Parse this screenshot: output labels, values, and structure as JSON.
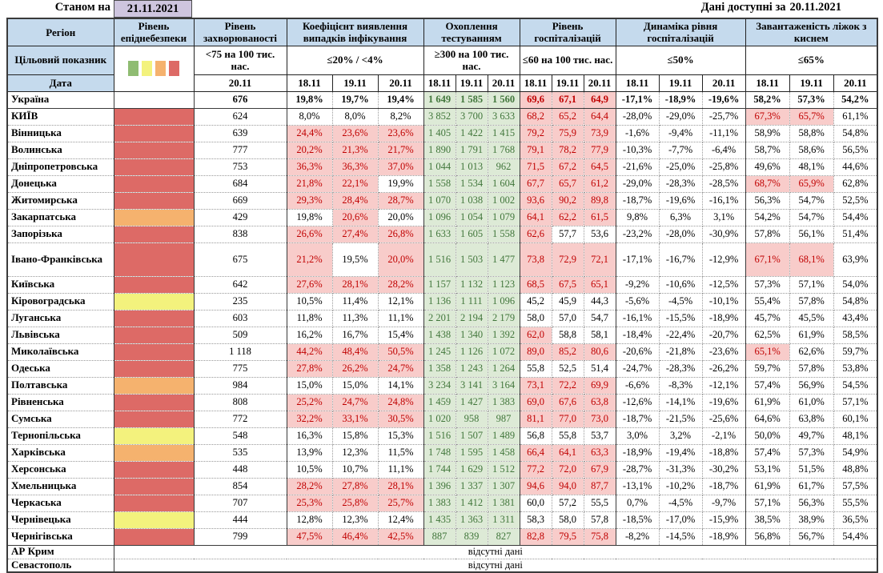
{
  "header": {
    "as_of_label": "Станом на",
    "as_of_date": "21.11.2021",
    "available_label": "Дані доступні за",
    "available_date": "20.11.2021"
  },
  "columns": {
    "region_label": "Регіон",
    "target_label": "Цільовий показник",
    "date_label": "Дата",
    "groups": [
      {
        "title": "Рівень епіднебезпеки"
      },
      {
        "title": "Рівень захворюваності",
        "criterion": "<75 на 100 тис. нас.",
        "dates": [
          "20.11"
        ]
      },
      {
        "title": "Коефіцієнт виявлення випадків інфікування",
        "criterion": "≤20% / <4%",
        "dates": [
          "18.11",
          "19.11",
          "20.11"
        ]
      },
      {
        "title": "Охоплення тестуванням",
        "criterion": "≥300 на 100 тис. нас.",
        "dates": [
          "18.11",
          "19.11",
          "20.11"
        ]
      },
      {
        "title": "Рівень госпіталізацій",
        "criterion": "≤60 на 100 тис. нас.",
        "dates": [
          "18.11",
          "19.11",
          "20.11"
        ]
      },
      {
        "title": "Динаміка рівня госпіталізацій",
        "criterion": "≤50%",
        "dates": [
          "18.11",
          "19.11",
          "20.11"
        ]
      },
      {
        "title": "Завантаженість ліжок з киснем",
        "criterion": "≤65%",
        "dates": [
          "18.11",
          "19.11",
          "20.11"
        ]
      }
    ]
  },
  "colors": {
    "header_bg": "#C5DAED",
    "date_box_bg": "#CEC5DE",
    "danger_red": "#DD6A66",
    "danger_orange": "#F5B26E",
    "danger_yellow": "#F3F27D",
    "danger_green": "#8FBC72",
    "alert_bg": "#F8CCCA",
    "alert_text": "#C00000",
    "ok_bg": "#DDEAD6",
    "ok_text": "#41763B"
  },
  "thresholds": {
    "hosp_max": 60,
    "beds_max": 65
  },
  "no_data_text": "відсутні дані",
  "no_data_rows": [
    "АР Крим",
    "Севастополь"
  ],
  "rows": [
    {
      "name": "Україна",
      "bold": true,
      "danger": null,
      "morbidity": "676",
      "coeff": [
        "19,8%",
        "19,7%",
        "19,4%"
      ],
      "coeff_hl": [
        false,
        false,
        false
      ],
      "testing": [
        "1 649",
        "1 585",
        "1 560"
      ],
      "hosp": [
        "69,6",
        "67,1",
        "64,9"
      ],
      "dyn": [
        "-17,1%",
        "-18,9%",
        "-19,6%"
      ],
      "beds": [
        "58,2%",
        "57,3%",
        "54,2%"
      ],
      "beds_hl": [
        false,
        false,
        false
      ]
    },
    {
      "name": "КИЇВ",
      "danger": "red",
      "morbidity": "624",
      "coeff": [
        "8,0%",
        "8,0%",
        "8,2%"
      ],
      "coeff_hl": [
        false,
        false,
        false
      ],
      "testing": [
        "3 852",
        "3 700",
        "3 633"
      ],
      "hosp": [
        "68,2",
        "65,2",
        "64,4"
      ],
      "dyn": [
        "-28,0%",
        "-29,0%",
        "-25,7%"
      ],
      "beds": [
        "67,3%",
        "65,7%",
        "61,1%"
      ],
      "beds_hl": [
        true,
        true,
        false
      ]
    },
    {
      "name": "Вінницька",
      "danger": "red",
      "morbidity": "639",
      "coeff": [
        "24,4%",
        "23,6%",
        "23,6%"
      ],
      "coeff_hl": [
        true,
        true,
        true
      ],
      "testing": [
        "1 405",
        "1 422",
        "1 415"
      ],
      "hosp": [
        "79,2",
        "75,9",
        "73,9"
      ],
      "dyn": [
        "-1,6%",
        "-9,4%",
        "-11,1%"
      ],
      "beds": [
        "58,9%",
        "58,8%",
        "54,8%"
      ],
      "beds_hl": [
        false,
        false,
        false
      ]
    },
    {
      "name": "Волинська",
      "danger": "red",
      "morbidity": "777",
      "coeff": [
        "20,2%",
        "21,3%",
        "21,7%"
      ],
      "coeff_hl": [
        true,
        true,
        true
      ],
      "testing": [
        "1 890",
        "1 791",
        "1 768"
      ],
      "hosp": [
        "79,1",
        "78,2",
        "77,9"
      ],
      "dyn": [
        "-10,3%",
        "-7,7%",
        "-6,4%"
      ],
      "beds": [
        "58,7%",
        "58,6%",
        "56,5%"
      ],
      "beds_hl": [
        false,
        false,
        false
      ]
    },
    {
      "name": "Дніпропетровська",
      "danger": "red",
      "morbidity": "753",
      "coeff": [
        "36,3%",
        "36,3%",
        "37,0%"
      ],
      "coeff_hl": [
        true,
        true,
        true
      ],
      "testing": [
        "1 044",
        "1 013",
        "962"
      ],
      "hosp": [
        "71,5",
        "67,2",
        "64,5"
      ],
      "dyn": [
        "-21,6%",
        "-25,0%",
        "-25,8%"
      ],
      "beds": [
        "49,6%",
        "48,1%",
        "44,6%"
      ],
      "beds_hl": [
        false,
        false,
        false
      ]
    },
    {
      "name": "Донецька",
      "danger": "red",
      "morbidity": "684",
      "coeff": [
        "21,8%",
        "22,1%",
        "19,9%"
      ],
      "coeff_hl": [
        true,
        true,
        false
      ],
      "testing": [
        "1 558",
        "1 534",
        "1 604"
      ],
      "hosp": [
        "67,7",
        "65,7",
        "61,2"
      ],
      "dyn": [
        "-29,0%",
        "-28,3%",
        "-28,5%"
      ],
      "beds": [
        "68,7%",
        "65,9%",
        "62,8%"
      ],
      "beds_hl": [
        true,
        true,
        false
      ]
    },
    {
      "name": "Житомирська",
      "danger": "red",
      "morbidity": "669",
      "coeff": [
        "29,3%",
        "28,4%",
        "28,7%"
      ],
      "coeff_hl": [
        true,
        true,
        true
      ],
      "testing": [
        "1 070",
        "1 038",
        "1 002"
      ],
      "hosp": [
        "93,6",
        "90,2",
        "89,8"
      ],
      "dyn": [
        "-18,7%",
        "-19,6%",
        "-16,1%"
      ],
      "beds": [
        "56,3%",
        "54,7%",
        "52,5%"
      ],
      "beds_hl": [
        false,
        false,
        false
      ]
    },
    {
      "name": "Закарпатська",
      "danger": "orange",
      "morbidity": "429",
      "coeff": [
        "19,8%",
        "20,6%",
        "20,0%"
      ],
      "coeff_hl": [
        false,
        true,
        false
      ],
      "testing": [
        "1 096",
        "1 054",
        "1 079"
      ],
      "hosp": [
        "64,1",
        "62,2",
        "61,5"
      ],
      "dyn": [
        "9,8%",
        "6,3%",
        "3,1%"
      ],
      "beds": [
        "54,2%",
        "54,7%",
        "54,4%"
      ],
      "beds_hl": [
        false,
        false,
        false
      ]
    },
    {
      "name": "Запорізька",
      "danger": "red",
      "morbidity": "838",
      "coeff": [
        "26,6%",
        "27,4%",
        "26,8%"
      ],
      "coeff_hl": [
        true,
        true,
        true
      ],
      "testing": [
        "1 633",
        "1 605",
        "1 558"
      ],
      "hosp": [
        "62,6",
        "57,7",
        "53,6"
      ],
      "dyn": [
        "-23,2%",
        "-28,0%",
        "-30,9%"
      ],
      "beds": [
        "57,8%",
        "56,1%",
        "51,4%"
      ],
      "beds_hl": [
        false,
        false,
        false
      ]
    },
    {
      "name": "Івано-Франківська",
      "tall": true,
      "danger": "red",
      "morbidity": "675",
      "coeff": [
        "21,2%",
        "19,5%",
        "20,0%"
      ],
      "coeff_hl": [
        true,
        false,
        true
      ],
      "testing": [
        "1 516",
        "1 503",
        "1 477"
      ],
      "hosp": [
        "73,8",
        "72,9",
        "72,1"
      ],
      "dyn": [
        "-17,1%",
        "-16,7%",
        "-12,9%"
      ],
      "beds": [
        "67,1%",
        "68,1%",
        "63,9%"
      ],
      "beds_hl": [
        true,
        true,
        false
      ]
    },
    {
      "name": "Київська",
      "danger": "red",
      "morbidity": "642",
      "coeff": [
        "27,6%",
        "28,1%",
        "28,2%"
      ],
      "coeff_hl": [
        true,
        true,
        true
      ],
      "testing": [
        "1 157",
        "1 132",
        "1 123"
      ],
      "hosp": [
        "68,5",
        "67,5",
        "65,1"
      ],
      "dyn": [
        "-9,2%",
        "-10,6%",
        "-12,5%"
      ],
      "beds": [
        "57,3%",
        "57,1%",
        "54,0%"
      ],
      "beds_hl": [
        false,
        false,
        false
      ]
    },
    {
      "name": "Кіровоградська",
      "danger": "yellow",
      "morbidity": "235",
      "coeff": [
        "10,5%",
        "11,4%",
        "12,1%"
      ],
      "coeff_hl": [
        false,
        false,
        false
      ],
      "testing": [
        "1 136",
        "1 111",
        "1 096"
      ],
      "hosp": [
        "45,2",
        "45,9",
        "44,3"
      ],
      "dyn": [
        "-5,6%",
        "-4,5%",
        "-10,1%"
      ],
      "beds": [
        "55,4%",
        "57,8%",
        "54,8%"
      ],
      "beds_hl": [
        false,
        false,
        false
      ]
    },
    {
      "name": "Луганська",
      "danger": "red",
      "morbidity": "603",
      "coeff": [
        "11,8%",
        "11,3%",
        "11,1%"
      ],
      "coeff_hl": [
        false,
        false,
        false
      ],
      "testing": [
        "2 201",
        "2 194",
        "2 179"
      ],
      "hosp": [
        "58,0",
        "57,0",
        "54,7"
      ],
      "dyn": [
        "-16,1%",
        "-15,5%",
        "-18,9%"
      ],
      "beds": [
        "45,7%",
        "45,5%",
        "43,4%"
      ],
      "beds_hl": [
        false,
        false,
        false
      ]
    },
    {
      "name": "Львівська",
      "danger": "red",
      "morbidity": "509",
      "coeff": [
        "16,2%",
        "16,7%",
        "15,4%"
      ],
      "coeff_hl": [
        false,
        false,
        false
      ],
      "testing": [
        "1 438",
        "1 340",
        "1 392"
      ],
      "hosp": [
        "62,0",
        "58,8",
        "58,1"
      ],
      "dyn": [
        "-18,4%",
        "-22,4%",
        "-20,7%"
      ],
      "beds": [
        "62,5%",
        "61,9%",
        "58,5%"
      ],
      "beds_hl": [
        false,
        false,
        false
      ]
    },
    {
      "name": "Миколаївська",
      "danger": "red",
      "morbidity": "1 118",
      "coeff": [
        "44,2%",
        "48,4%",
        "50,5%"
      ],
      "coeff_hl": [
        true,
        true,
        true
      ],
      "testing": [
        "1 245",
        "1 126",
        "1 072"
      ],
      "hosp": [
        "89,0",
        "85,2",
        "80,6"
      ],
      "dyn": [
        "-20,6%",
        "-21,8%",
        "-23,6%"
      ],
      "beds": [
        "65,1%",
        "62,6%",
        "59,7%"
      ],
      "beds_hl": [
        true,
        false,
        false
      ]
    },
    {
      "name": "Одеська",
      "danger": "red",
      "morbidity": "775",
      "coeff": [
        "27,8%",
        "26,2%",
        "24,7%"
      ],
      "coeff_hl": [
        true,
        true,
        true
      ],
      "testing": [
        "1 358",
        "1 243",
        "1 264"
      ],
      "hosp": [
        "55,8",
        "52,5",
        "51,4"
      ],
      "dyn": [
        "-24,7%",
        "-28,3%",
        "-26,2%"
      ],
      "beds": [
        "59,7%",
        "57,8%",
        "53,8%"
      ],
      "beds_hl": [
        false,
        false,
        false
      ]
    },
    {
      "name": "Полтавська",
      "danger": "orange",
      "morbidity": "984",
      "coeff": [
        "15,0%",
        "15,0%",
        "14,1%"
      ],
      "coeff_hl": [
        false,
        false,
        false
      ],
      "testing": [
        "3 234",
        "3 141",
        "3 164"
      ],
      "hosp": [
        "73,1",
        "72,2",
        "69,9"
      ],
      "dyn": [
        "-6,6%",
        "-8,3%",
        "-12,1%"
      ],
      "beds": [
        "57,4%",
        "56,9%",
        "54,5%"
      ],
      "beds_hl": [
        false,
        false,
        false
      ]
    },
    {
      "name": "Рівненська",
      "danger": "red",
      "morbidity": "808",
      "coeff": [
        "25,2%",
        "24,7%",
        "24,8%"
      ],
      "coeff_hl": [
        true,
        true,
        true
      ],
      "testing": [
        "1 459",
        "1 427",
        "1 383"
      ],
      "hosp": [
        "69,0",
        "67,6",
        "63,8"
      ],
      "dyn": [
        "-12,6%",
        "-14,1%",
        "-19,6%"
      ],
      "beds": [
        "61,9%",
        "61,0%",
        "57,1%"
      ],
      "beds_hl": [
        false,
        false,
        false
      ]
    },
    {
      "name": "Сумська",
      "danger": "red",
      "morbidity": "772",
      "coeff": [
        "32,2%",
        "33,1%",
        "30,5%"
      ],
      "coeff_hl": [
        true,
        true,
        true
      ],
      "testing": [
        "1 020",
        "958",
        "987"
      ],
      "hosp": [
        "81,1",
        "77,0",
        "73,0"
      ],
      "dyn": [
        "-18,7%",
        "-21,5%",
        "-25,6%"
      ],
      "beds": [
        "64,6%",
        "63,8%",
        "60,1%"
      ],
      "beds_hl": [
        false,
        false,
        false
      ]
    },
    {
      "name": "Тернопільська",
      "danger": "yellow",
      "morbidity": "548",
      "coeff": [
        "16,3%",
        "15,8%",
        "15,3%"
      ],
      "coeff_hl": [
        false,
        false,
        false
      ],
      "testing": [
        "1 516",
        "1 507",
        "1 489"
      ],
      "hosp": [
        "56,8",
        "55,8",
        "53,7"
      ],
      "dyn": [
        "3,0%",
        "3,2%",
        "-2,1%"
      ],
      "beds": [
        "50,0%",
        "49,7%",
        "48,1%"
      ],
      "beds_hl": [
        false,
        false,
        false
      ]
    },
    {
      "name": "Харківська",
      "danger": "orange",
      "morbidity": "535",
      "coeff": [
        "13,9%",
        "12,3%",
        "11,5%"
      ],
      "coeff_hl": [
        false,
        false,
        false
      ],
      "testing": [
        "1 748",
        "1 595",
        "1 458"
      ],
      "hosp": [
        "66,4",
        "64,1",
        "63,3"
      ],
      "dyn": [
        "-18,9%",
        "-19,4%",
        "-18,8%"
      ],
      "beds": [
        "57,4%",
        "57,3%",
        "54,9%"
      ],
      "beds_hl": [
        false,
        false,
        false
      ]
    },
    {
      "name": "Херсонська",
      "danger": "red",
      "morbidity": "448",
      "coeff": [
        "10,5%",
        "10,7%",
        "11,1%"
      ],
      "coeff_hl": [
        false,
        false,
        false
      ],
      "testing": [
        "1 744",
        "1 629",
        "1 512"
      ],
      "hosp": [
        "77,2",
        "72,0",
        "67,9"
      ],
      "dyn": [
        "-28,7%",
        "-31,3%",
        "-30,2%"
      ],
      "beds": [
        "53,1%",
        "51,5%",
        "48,8%"
      ],
      "beds_hl": [
        false,
        false,
        false
      ]
    },
    {
      "name": "Хмельницька",
      "danger": "red",
      "morbidity": "854",
      "coeff": [
        "28,2%",
        "27,8%",
        "28,1%"
      ],
      "coeff_hl": [
        true,
        true,
        true
      ],
      "testing": [
        "1 396",
        "1 337",
        "1 307"
      ],
      "hosp": [
        "94,6",
        "94,0",
        "87,7"
      ],
      "dyn": [
        "-13,1%",
        "-10,2%",
        "-18,7%"
      ],
      "beds": [
        "61,9%",
        "61,7%",
        "57,5%"
      ],
      "beds_hl": [
        false,
        false,
        false
      ]
    },
    {
      "name": "Черкаська",
      "danger": "red",
      "morbidity": "707",
      "coeff": [
        "25,3%",
        "25,8%",
        "25,7%"
      ],
      "coeff_hl": [
        true,
        true,
        true
      ],
      "testing": [
        "1 383",
        "1 412",
        "1 381"
      ],
      "hosp": [
        "60,0",
        "57,2",
        "55,5"
      ],
      "dyn": [
        "0,7%",
        "-4,5%",
        "-9,7%"
      ],
      "beds": [
        "57,1%",
        "56,3%",
        "55,5%"
      ],
      "beds_hl": [
        false,
        false,
        false
      ]
    },
    {
      "name": "Чернівецька",
      "danger": "yellow",
      "morbidity": "444",
      "coeff": [
        "12,8%",
        "12,3%",
        "12,4%"
      ],
      "coeff_hl": [
        false,
        false,
        false
      ],
      "testing": [
        "1 435",
        "1 363",
        "1 311"
      ],
      "hosp": [
        "58,3",
        "58,0",
        "57,8"
      ],
      "dyn": [
        "-18,5%",
        "-17,0%",
        "-15,9%"
      ],
      "beds": [
        "38,5%",
        "38,9%",
        "36,5%"
      ],
      "beds_hl": [
        false,
        false,
        false
      ]
    },
    {
      "name": "Чернігівська",
      "danger": "red",
      "morbidity": "799",
      "coeff": [
        "47,5%",
        "46,4%",
        "42,5%"
      ],
      "coeff_hl": [
        true,
        true,
        true
      ],
      "testing": [
        "887",
        "839",
        "827"
      ],
      "hosp": [
        "82,8",
        "79,5",
        "75,8"
      ],
      "dyn": [
        "-8,2%",
        "-14,5%",
        "-18,9%"
      ],
      "beds": [
        "56,8%",
        "56,7%",
        "54,4%"
      ],
      "beds_hl": [
        false,
        false,
        false
      ]
    }
  ]
}
